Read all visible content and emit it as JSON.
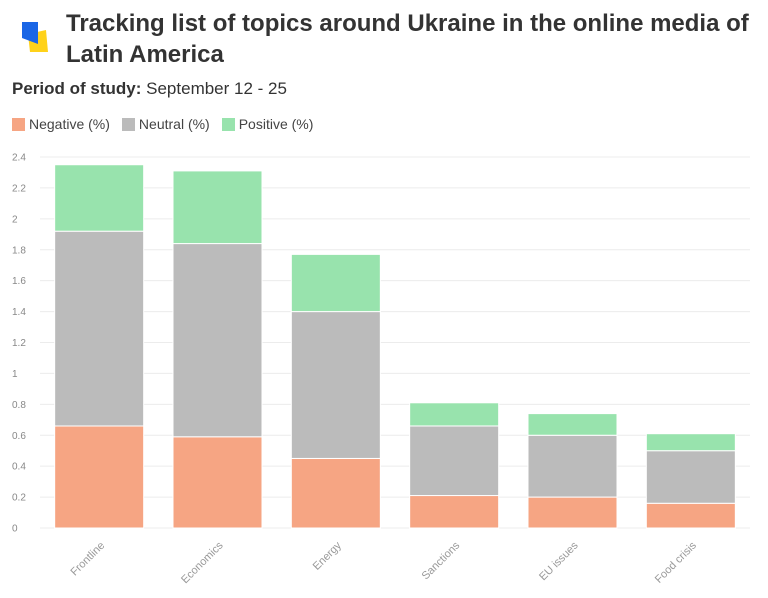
{
  "header": {
    "title": "Tracking list of topics around Ukraine in the online media of Latin America",
    "period_label": "Period of study:",
    "period_value": "September 12 - 25"
  },
  "colors": {
    "negative": "#f6a583",
    "neutral": "#bbbbbb",
    "positive": "#98e3ad",
    "logo_blue": "#1a66e6",
    "logo_yellow": "#ffd21a"
  },
  "legend": [
    {
      "label": "Negative (%)",
      "color_key": "negative"
    },
    {
      "label": "Neutral (%)",
      "color_key": "neutral"
    },
    {
      "label": "Positive (%)",
      "color_key": "positive"
    }
  ],
  "chart_data": {
    "type": "bar",
    "stacked": true,
    "categories": [
      "Frontline",
      "Economics",
      "Energy",
      "Sanctions",
      "EU issues",
      "Food crisis"
    ],
    "series": [
      {
        "name": "Negative (%)",
        "values": [
          0.66,
          0.59,
          0.45,
          0.21,
          0.2,
          0.16
        ]
      },
      {
        "name": "Neutral (%)",
        "values": [
          1.26,
          1.25,
          0.95,
          0.45,
          0.4,
          0.34
        ]
      },
      {
        "name": "Positive (%)",
        "values": [
          0.43,
          0.47,
          0.37,
          0.15,
          0.14,
          0.11
        ]
      }
    ],
    "ylim": [
      0,
      2.4
    ],
    "yticks": [
      "0",
      "0.2",
      "0.4",
      "0.6",
      "0.8",
      "1",
      "1.2",
      "1.4",
      "1.6",
      "1.8",
      "2",
      "2.2",
      "2.4"
    ],
    "grid": true,
    "legend_position": "top-left"
  }
}
